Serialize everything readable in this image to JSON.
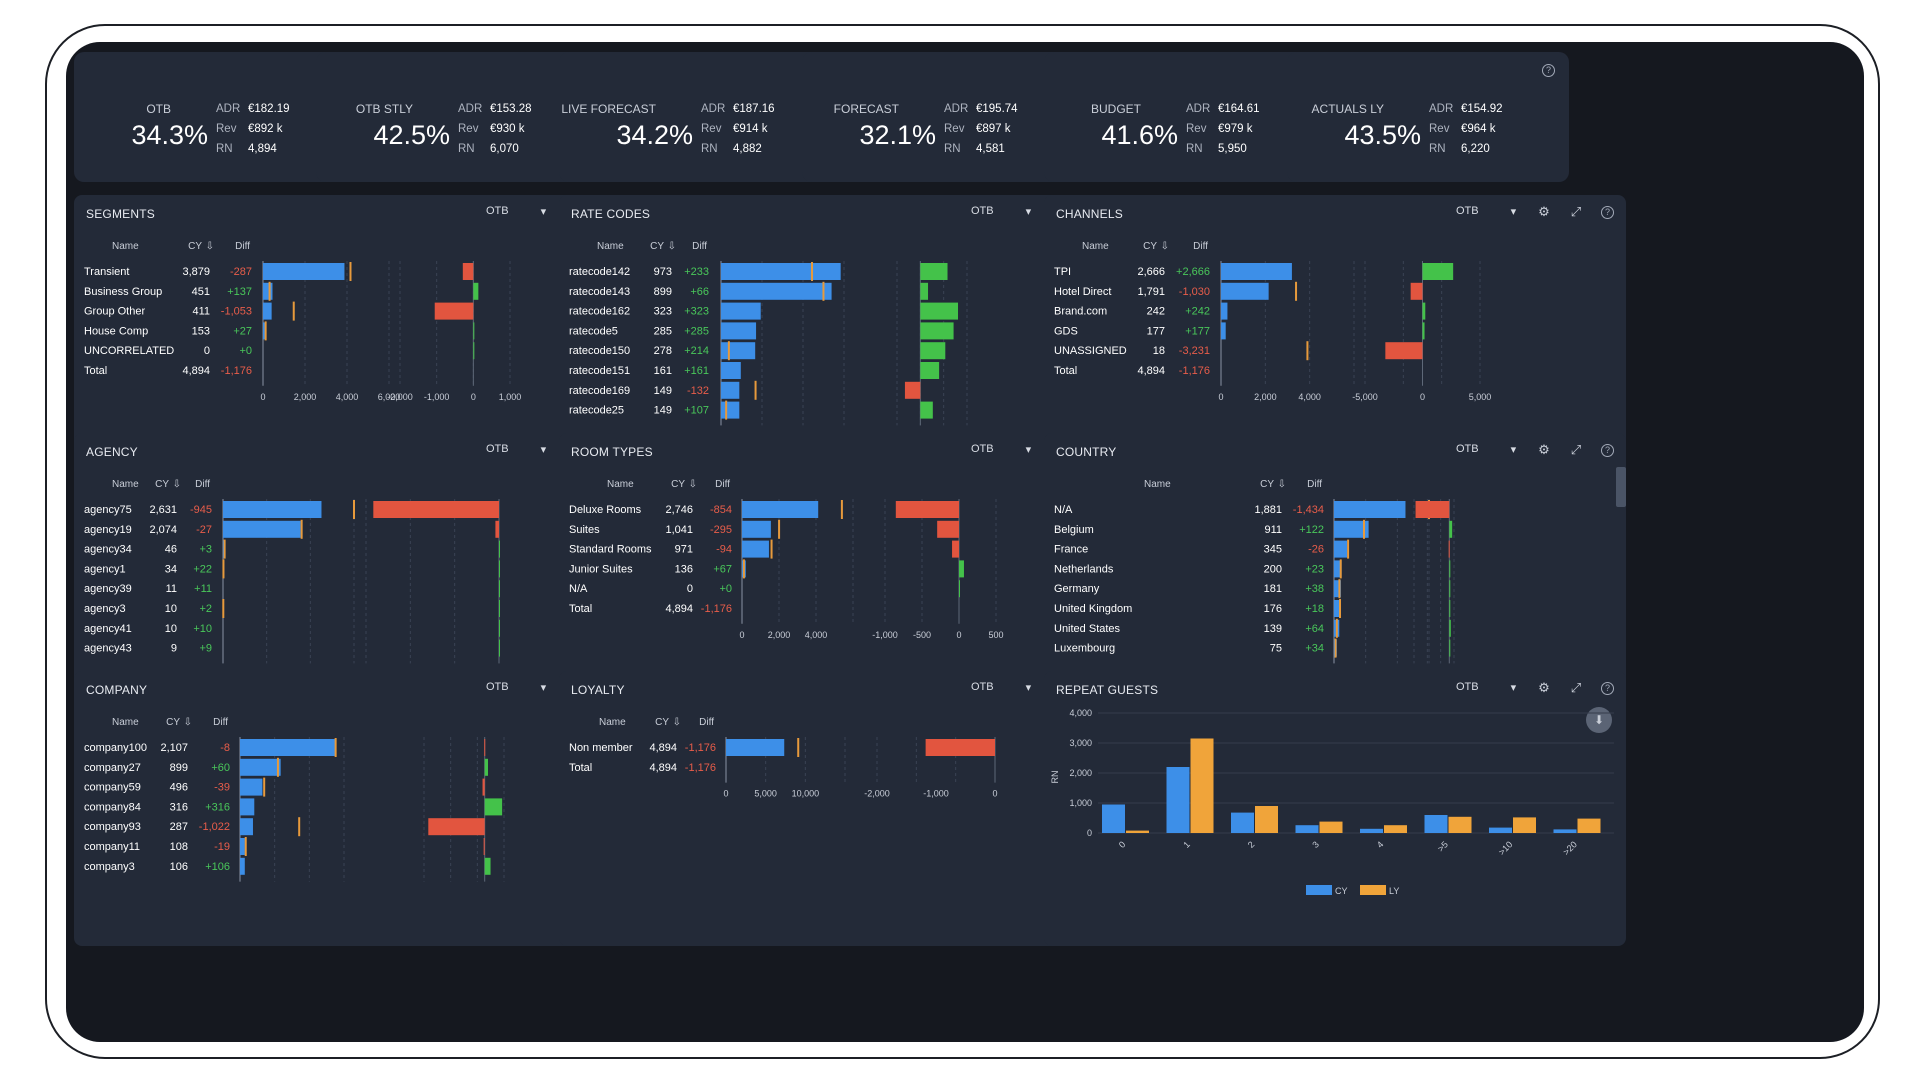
{
  "colors": {
    "cy": "#3d8fe8",
    "ly": "#f0a43a",
    "pos": "#44c24a",
    "neg": "#e2553f",
    "marker": "#e79a3c",
    "pos_text": "#49c75a",
    "neg_text": "#e85d4a"
  },
  "kpis": [
    {
      "label": "OTB",
      "value": "34.3%",
      "adr": "€182.19",
      "rev": "€892 k",
      "rn": "4,894"
    },
    {
      "label": "OTB STLY",
      "value": "42.5%",
      "adr": "€153.28",
      "rev": "€930 k",
      "rn": "6,070"
    },
    {
      "label": "LIVE FORECAST",
      "value": "34.2%",
      "adr": "€187.16",
      "rev": "€914 k",
      "rn": "4,882"
    },
    {
      "label": "FORECAST",
      "value": "32.1%",
      "adr": "€195.74",
      "rev": "€897 k",
      "rn": "4,581"
    },
    {
      "label": "BUDGET",
      "value": "41.6%",
      "adr": "€164.61",
      "rev": "€979 k",
      "rn": "5,950"
    },
    {
      "label": "ACTUALS LY",
      "value": "43.5%",
      "adr": "€154.92",
      "rev": "€964 k",
      "rn": "6,220"
    }
  ],
  "kpi_keys": {
    "adr": "ADR",
    "rev": "Rev",
    "rn": "RN"
  },
  "common": {
    "otb": "OTB",
    "col_name": "Name",
    "col_cy": "CY",
    "col_diff": "Diff",
    "help": "?"
  },
  "panels": [
    {
      "id": "segments",
      "title": "SEGMENTS",
      "scroll": false,
      "xticks": [
        "0",
        "2,000",
        "4,000",
        "6,000"
      ],
      "xmax": 6000,
      "dticks": [
        "-2,000",
        "-1,000",
        "0",
        "1,000"
      ],
      "dmin": -2000,
      "dmax": 1000,
      "rows": [
        {
          "name": "Transient",
          "cy": 3879,
          "cy_label": "3,879",
          "diff": -287,
          "diff_label": "-287"
        },
        {
          "name": "Business Group",
          "cy": 451,
          "cy_label": "451",
          "diff": 137,
          "diff_label": "+137"
        },
        {
          "name": "Group Other",
          "cy": 411,
          "cy_label": "411",
          "diff": -1053,
          "diff_label": "-1,053"
        },
        {
          "name": "House Comp",
          "cy": 153,
          "cy_label": "153",
          "diff": 27,
          "diff_label": "+27"
        },
        {
          "name": "UNCORRELATED",
          "cy": 0,
          "cy_label": "0",
          "diff": 0,
          "diff_label": "+0"
        },
        {
          "name": "Total",
          "cy": 4894,
          "cy_label": "4,894",
          "diff": -1176,
          "diff_label": "-1,176",
          "total": true
        }
      ]
    },
    {
      "id": "rate-codes",
      "title": "RATE CODES",
      "scroll": true,
      "xticks": [],
      "xmax": 1000,
      "dticks": [],
      "dmin": -200,
      "dmax": 400,
      "rows": [
        {
          "name": "ratecode142",
          "cy": 973,
          "cy_label": "973",
          "diff": 233,
          "diff_label": "+233"
        },
        {
          "name": "ratecode143",
          "cy": 899,
          "cy_label": "899",
          "diff": 66,
          "diff_label": "+66"
        },
        {
          "name": "ratecode162",
          "cy": 323,
          "cy_label": "323",
          "diff": 323,
          "diff_label": "+323"
        },
        {
          "name": "ratecode5",
          "cy": 285,
          "cy_label": "285",
          "diff": 285,
          "diff_label": "+285"
        },
        {
          "name": "ratecode150",
          "cy": 278,
          "cy_label": "278",
          "diff": 214,
          "diff_label": "+214"
        },
        {
          "name": "ratecode151",
          "cy": 161,
          "cy_label": "161",
          "diff": 161,
          "diff_label": "+161"
        },
        {
          "name": "ratecode169",
          "cy": 149,
          "cy_label": "149",
          "diff": -132,
          "diff_label": "-132"
        },
        {
          "name": "ratecode25",
          "cy": 149,
          "cy_label": "149",
          "diff": 107,
          "diff_label": "+107"
        }
      ]
    },
    {
      "id": "channels",
      "title": "CHANNELS",
      "scroll": false,
      "xticks": [
        "0",
        "2,000",
        "4,000"
      ],
      "xmax": 5000,
      "dticks": [
        "-5,000",
        "0",
        "5,000"
      ],
      "dmin": -5000,
      "dmax": 5000,
      "rows": [
        {
          "name": "TPI",
          "cy": 2666,
          "cy_label": "2,666",
          "diff": 2666,
          "diff_label": "+2,666"
        },
        {
          "name": "Hotel Direct",
          "cy": 1791,
          "cy_label": "1,791",
          "diff": -1030,
          "diff_label": "-1,030"
        },
        {
          "name": "Brand.com",
          "cy": 242,
          "cy_label": "242",
          "diff": 242,
          "diff_label": "+242"
        },
        {
          "name": "GDS",
          "cy": 177,
          "cy_label": "177",
          "diff": 177,
          "diff_label": "+177"
        },
        {
          "name": "UNASSIGNED",
          "cy": 18,
          "cy_label": "18",
          "diff": -3231,
          "diff_label": "-3,231"
        },
        {
          "name": "Total",
          "cy": 4894,
          "cy_label": "4,894",
          "diff": -1176,
          "diff_label": "-1,176",
          "total": true
        }
      ]
    },
    {
      "id": "agency",
      "title": "AGENCY",
      "scroll": true,
      "xticks": [],
      "xmax": 3500,
      "dticks": [],
      "dmin": -1000,
      "dmax": 0,
      "rows": [
        {
          "name": "agency75",
          "cy": 2631,
          "cy_label": "2,631",
          "diff": -945,
          "diff_label": "-945"
        },
        {
          "name": "agency19",
          "cy": 2074,
          "cy_label": "2,074",
          "diff": -27,
          "diff_label": "-27"
        },
        {
          "name": "agency34",
          "cy": 46,
          "cy_label": "46",
          "diff": 3,
          "diff_label": "+3"
        },
        {
          "name": "agency1",
          "cy": 34,
          "cy_label": "34",
          "diff": 22,
          "diff_label": "+22"
        },
        {
          "name": "agency39",
          "cy": 11,
          "cy_label": "11",
          "diff": 11,
          "diff_label": "+11"
        },
        {
          "name": "agency3",
          "cy": 10,
          "cy_label": "10",
          "diff": 2,
          "diff_label": "+2"
        },
        {
          "name": "agency41",
          "cy": 10,
          "cy_label": "10",
          "diff": 10,
          "diff_label": "+10"
        },
        {
          "name": "agency43",
          "cy": 9,
          "cy_label": "9",
          "diff": 9,
          "diff_label": "+9"
        }
      ]
    },
    {
      "id": "room-types",
      "title": "ROOM TYPES",
      "scroll": false,
      "xticks": [
        "0",
        "2,000",
        "4,000"
      ],
      "xmax": 4000,
      "dticks": [
        "-1,000",
        "-500",
        "0",
        "500"
      ],
      "dmin": -1000,
      "dmax": 500,
      "rows": [
        {
          "name": "Deluxe Rooms",
          "cy": 2746,
          "cy_label": "2,746",
          "diff": -854,
          "diff_label": "-854"
        },
        {
          "name": "Suites",
          "cy": 1041,
          "cy_label": "1,041",
          "diff": -295,
          "diff_label": "-295"
        },
        {
          "name": "Standard Rooms",
          "cy": 971,
          "cy_label": "971",
          "diff": -94,
          "diff_label": "-94"
        },
        {
          "name": "Junior Suites",
          "cy": 136,
          "cy_label": "136",
          "diff": 67,
          "diff_label": "+67"
        },
        {
          "name": "N/A",
          "cy": 0,
          "cy_label": "0",
          "diff": 0,
          "diff_label": "+0"
        },
        {
          "name": "Total",
          "cy": 4894,
          "cy_label": "4,894",
          "diff": -1176,
          "diff_label": "-1,176",
          "total": true
        }
      ]
    },
    {
      "id": "country",
      "title": "COUNTRY",
      "scroll": true,
      "xticks": [],
      "xmax": 2500,
      "dticks": [],
      "dmin": -1500,
      "dmax": 200,
      "rows": [
        {
          "name": "N/A",
          "cy": 1881,
          "cy_label": "1,881",
          "diff": -1434,
          "diff_label": "-1,434"
        },
        {
          "name": "Belgium",
          "cy": 911,
          "cy_label": "911",
          "diff": 122,
          "diff_label": "+122"
        },
        {
          "name": "France",
          "cy": 345,
          "cy_label": "345",
          "diff": -26,
          "diff_label": "-26"
        },
        {
          "name": "Netherlands",
          "cy": 200,
          "cy_label": "200",
          "diff": 23,
          "diff_label": "+23"
        },
        {
          "name": "Germany",
          "cy": 181,
          "cy_label": "181",
          "diff": 38,
          "diff_label": "+38"
        },
        {
          "name": "United Kingdom",
          "cy": 176,
          "cy_label": "176",
          "diff": 18,
          "diff_label": "+18"
        },
        {
          "name": "United States",
          "cy": 139,
          "cy_label": "139",
          "diff": 64,
          "diff_label": "+64"
        },
        {
          "name": "Luxembourg",
          "cy": 75,
          "cy_label": "75",
          "diff": 34,
          "diff_label": "+34"
        }
      ]
    },
    {
      "id": "company",
      "title": "COMPANY",
      "scroll": true,
      "xticks": [],
      "xmax": 2300,
      "dticks": [],
      "dmin": -1100,
      "dmax": 350,
      "rows": [
        {
          "name": "company100",
          "cy": 2107,
          "cy_label": "2,107",
          "diff": -8,
          "diff_label": "-8"
        },
        {
          "name": "company27",
          "cy": 899,
          "cy_label": "899",
          "diff": 60,
          "diff_label": "+60"
        },
        {
          "name": "company59",
          "cy": 496,
          "cy_label": "496",
          "diff": -39,
          "diff_label": "-39"
        },
        {
          "name": "company84",
          "cy": 316,
          "cy_label": "316",
          "diff": 316,
          "diff_label": "+316"
        },
        {
          "name": "company93",
          "cy": 287,
          "cy_label": "287",
          "diff": -1022,
          "diff_label": "-1,022"
        },
        {
          "name": "company11",
          "cy": 108,
          "cy_label": "108",
          "diff": -19,
          "diff_label": "-19"
        },
        {
          "name": "company3",
          "cy": 106,
          "cy_label": "106",
          "diff": 106,
          "diff_label": "+106"
        }
      ]
    },
    {
      "id": "loyalty",
      "title": "LOYALTY",
      "scroll": false,
      "xticks": [
        "0",
        "5,000",
        "10,000"
      ],
      "xmax": 10000,
      "dticks": [
        "-2,000",
        "-1,000",
        "0"
      ],
      "dmin": -2000,
      "dmax": 0,
      "rows": [
        {
          "name": "Non member",
          "cy": 4894,
          "cy_label": "4,894",
          "diff": -1176,
          "diff_label": "-1,176"
        },
        {
          "name": "Total",
          "cy": 4894,
          "cy_label": "4,894",
          "diff": -1176,
          "diff_label": "-1,176",
          "total": true
        }
      ]
    }
  ],
  "repeat_guests": {
    "title": "REPEAT GUESTS",
    "chart_data": {
      "type": "bar",
      "categories": [
        "0",
        "1",
        "2",
        "3",
        "4",
        ">5",
        ">10",
        ">20"
      ],
      "series": [
        {
          "name": "CY",
          "values": [
            950,
            2200,
            680,
            260,
            140,
            600,
            180,
            120
          ]
        },
        {
          "name": "LY",
          "values": [
            80,
            3150,
            900,
            380,
            260,
            540,
            520,
            480
          ]
        }
      ],
      "ylabel": "RN",
      "yticks": [
        "0",
        "1,000",
        "2,000",
        "3,000",
        "4,000"
      ],
      "ylim": [
        0,
        4000
      ],
      "legend": "bottom-center"
    }
  }
}
